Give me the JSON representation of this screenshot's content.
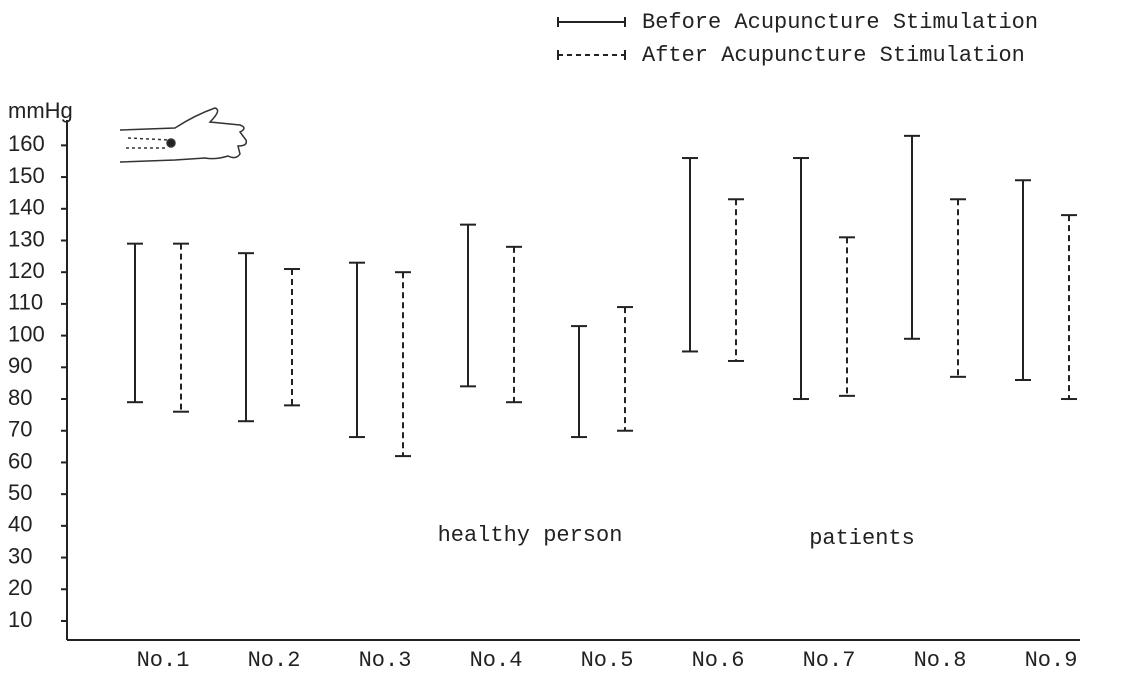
{
  "chart_data": {
    "type": "range",
    "y_label": "mmHg",
    "categories": [
      "No.1",
      "No.2",
      "No.3",
      "No.4",
      "No.5",
      "No.6",
      "No.7",
      "No.8",
      "No.9"
    ],
    "series": [
      {
        "name": "Before Acupuncture Stimulation",
        "color": "#222222",
        "dash": false,
        "low": [
          79,
          73,
          68,
          84,
          68,
          95,
          80,
          99,
          86
        ],
        "high": [
          129,
          126,
          123,
          135,
          103,
          156,
          156,
          163,
          149
        ]
      },
      {
        "name": "After Acupuncture Stimulation",
        "color": "#222222",
        "dash": true,
        "low": [
          76,
          78,
          62,
          79,
          70,
          92,
          81,
          87,
          80
        ],
        "high": [
          129,
          121,
          120,
          128,
          109,
          143,
          131,
          143,
          138
        ]
      }
    ],
    "ylim": [
      4,
      168
    ],
    "yticks": [
      10,
      20,
      30,
      40,
      50,
      60,
      70,
      80,
      90,
      100,
      110,
      120,
      130,
      140,
      150,
      160
    ],
    "annotations": [
      "healthy person",
      "patients"
    ],
    "legend": "top-right"
  }
}
